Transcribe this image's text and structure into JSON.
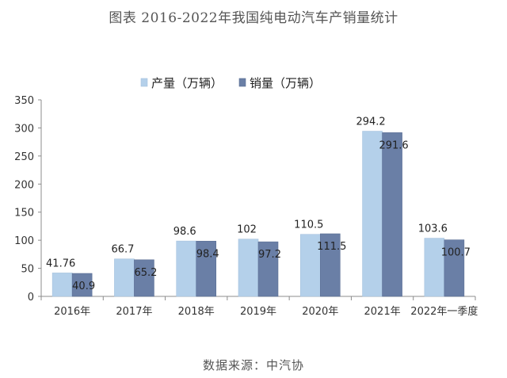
{
  "chart_data": {
    "type": "bar",
    "title": "图表    2016-2022年我国纯电动汽车产销量统计",
    "categories": [
      "2016年",
      "2017年",
      "2018年",
      "2019年",
      "2020年",
      "2021年",
      "2022年一季度"
    ],
    "series": [
      {
        "name": "产量（万辆）",
        "color": "#b4d0ea",
        "values": [
          41.76,
          66.7,
          98.6,
          102,
          110.5,
          294.2,
          103.6
        ],
        "labels": [
          "41.76",
          "66.7",
          "98.6",
          "102",
          "110.5",
          "294.2",
          "103.6"
        ]
      },
      {
        "name": "销量（万辆）",
        "color": "#6a7fa6",
        "values": [
          40.9,
          65.2,
          98.4,
          97.2,
          111.5,
          291.6,
          100.7
        ],
        "labels": [
          "40.9",
          "65.2",
          "98.4",
          "97.2",
          "111.5",
          "291.6",
          "100.7"
        ]
      }
    ],
    "yticks": [
      "0",
      "50",
      "100",
      "150",
      "200",
      "250",
      "300",
      "350"
    ],
    "ylim": [
      0,
      350
    ],
    "grid": false,
    "legend_position": "top-center"
  },
  "footer": {
    "source": "数据来源：中汽协"
  }
}
